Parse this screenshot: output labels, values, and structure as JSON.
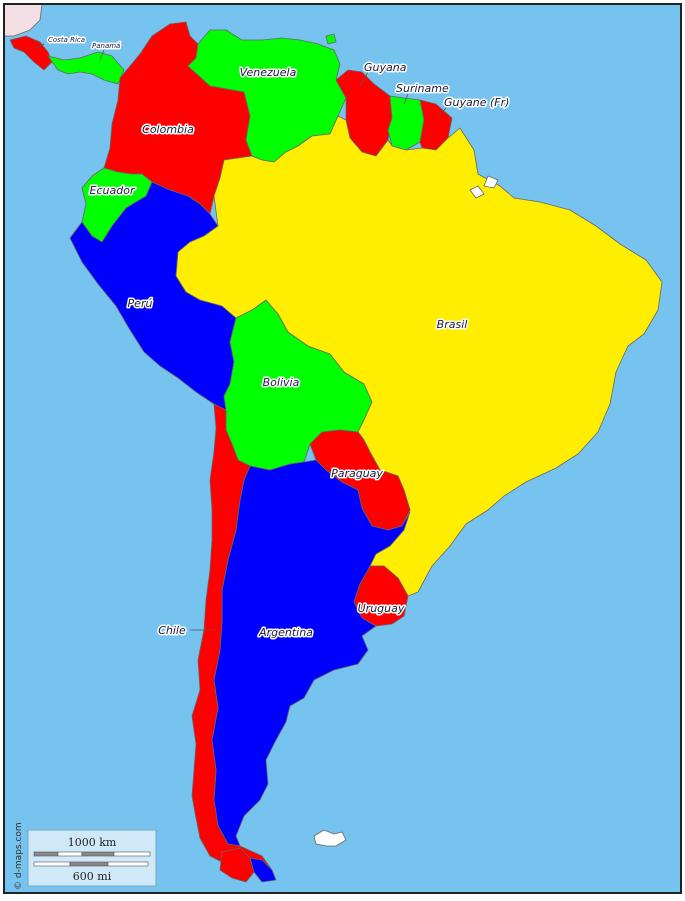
{
  "colors": {
    "ocean": "#75c3ee",
    "red": "#ff0000",
    "green": "#00ff00",
    "blue": "#0000ff",
    "yellow": "#ffee00",
    "other_land": "#f4dfe4"
  },
  "countries": {
    "costa_rica": "Costa Rica",
    "panama": "Panamá",
    "venezuela": "Venezuela",
    "guyana": "Guyana",
    "suriname": "Suriname",
    "guyane": "Guyane (Fr)",
    "colombia": "Colombia",
    "ecuador": "Ecuador",
    "peru": "Perú",
    "brasil": "Brasil",
    "bolivia": "Bolivia",
    "paraguay": "Paraguay",
    "chile": "Chile",
    "argentina": "Argentina",
    "uruguay": "Uruguay"
  },
  "scale": {
    "km_label": "1000 km",
    "mi_label": "600 mi"
  },
  "credit": "© d-maps.com"
}
